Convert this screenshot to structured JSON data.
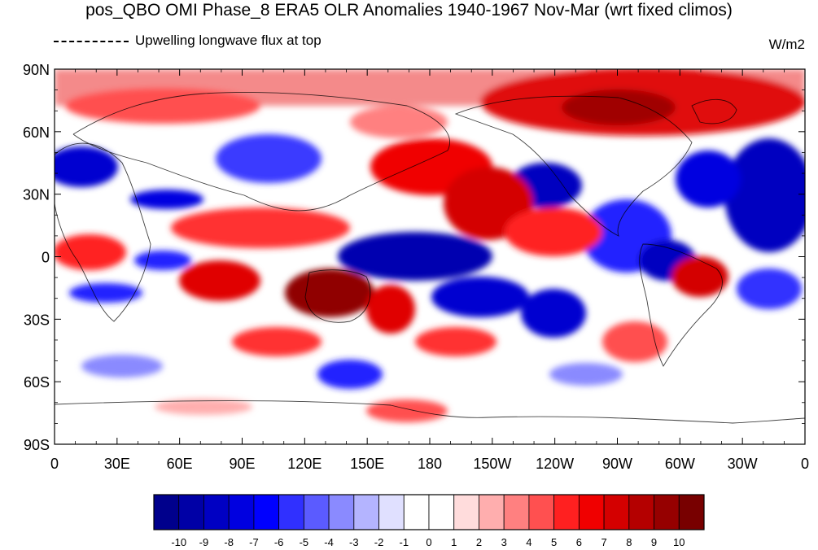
{
  "title": "pos_QBO OMI Phase_8 ERA5 OLR Anomalies 1940-1967 Nov-Mar (wrt fixed climos)",
  "legend": {
    "label": "Upwelling longwave flux at top"
  },
  "units": "W/m2",
  "map": {
    "lon_ticks": [
      "0",
      "30E",
      "60E",
      "90E",
      "120E",
      "150E",
      "180",
      "150W",
      "120W",
      "90W",
      "60W",
      "30W",
      "0"
    ],
    "lat_ticks": [
      "90N",
      "60N",
      "30N",
      "0",
      "30S",
      "60S",
      "90S"
    ]
  },
  "colorbar": {
    "levels": [
      "-10",
      "-9",
      "-8",
      "-7",
      "-6",
      "-5",
      "-4",
      "-3",
      "-2",
      "-1",
      "0",
      "1",
      "2",
      "3",
      "4",
      "5",
      "6",
      "7",
      "8",
      "9",
      "10"
    ],
    "colors": [
      "#00008c",
      "#0000a6",
      "#0000c3",
      "#0000e0",
      "#0000ff",
      "#3030ff",
      "#5b5bff",
      "#8a8aff",
      "#b4b4ff",
      "#e0e0ff",
      "#ffffff",
      "#ffffff",
      "#ffdcdc",
      "#ffaeae",
      "#ff8080",
      "#ff5050",
      "#ff2020",
      "#f00000",
      "#d40000",
      "#b40000",
      "#960000",
      "#780000"
    ]
  }
}
